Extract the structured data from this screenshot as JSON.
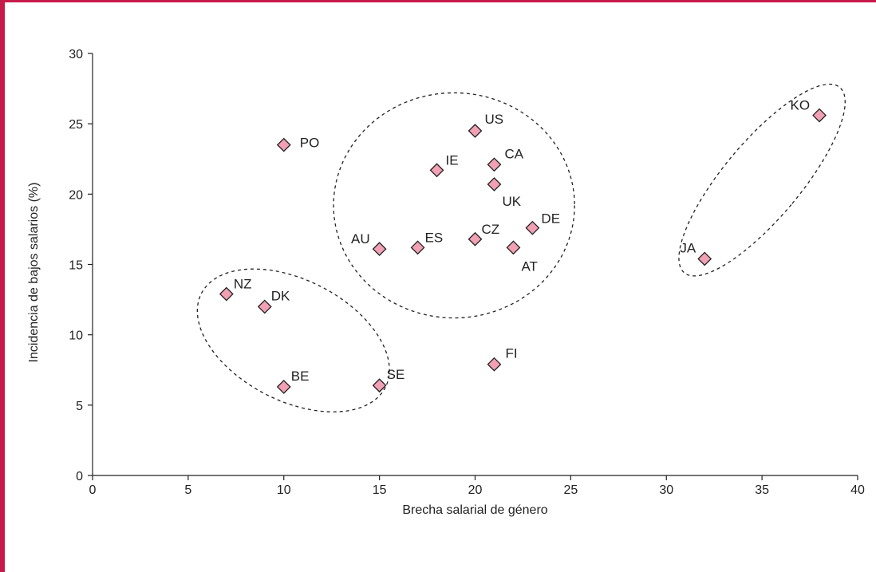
{
  "chart_data": {
    "type": "scatter",
    "xlabel": "Brecha salarial de género",
    "ylabel": "Incidencia de bajos salarios (%)",
    "xlim": [
      0,
      40
    ],
    "ylim": [
      0,
      30
    ],
    "xticks": [
      "0",
      "5",
      "10",
      "15",
      "20",
      "25",
      "30",
      "35",
      "40"
    ],
    "yticks": [
      "0",
      "5",
      "10",
      "15",
      "20",
      "25",
      "30"
    ],
    "grid": false,
    "marker": "diamond",
    "colors": {
      "marker_fill": "#f2a0b4",
      "marker_stroke": "#222222",
      "frame": "#c8194b"
    },
    "points": [
      {
        "label": "PO",
        "x": 10,
        "y": 23.5
      },
      {
        "label": "US",
        "x": 20,
        "y": 24.5
      },
      {
        "label": "IE",
        "x": 18,
        "y": 21.7
      },
      {
        "label": "CA",
        "x": 21,
        "y": 22.1
      },
      {
        "label": "UK",
        "x": 21,
        "y": 20.7
      },
      {
        "label": "DE",
        "x": 23,
        "y": 17.6
      },
      {
        "label": "CZ",
        "x": 20,
        "y": 16.8
      },
      {
        "label": "AT",
        "x": 22,
        "y": 16.2
      },
      {
        "label": "AU",
        "x": 15,
        "y": 16.1
      },
      {
        "label": "ES",
        "x": 17,
        "y": 16.2
      },
      {
        "label": "NZ",
        "x": 7,
        "y": 12.9
      },
      {
        "label": "DK",
        "x": 9,
        "y": 12.0
      },
      {
        "label": "BE",
        "x": 10,
        "y": 6.3
      },
      {
        "label": "SE",
        "x": 15,
        "y": 6.4
      },
      {
        "label": "FI",
        "x": 21,
        "y": 7.9
      },
      {
        "label": "KO",
        "x": 38,
        "y": 25.6
      },
      {
        "label": "JA",
        "x": 32,
        "y": 15.4
      }
    ],
    "clusters": [
      {
        "members": [
          "US",
          "IE",
          "CA",
          "UK",
          "DE",
          "CZ",
          "AT",
          "AU",
          "ES"
        ],
        "cx": 18.9,
        "cy": 19.2,
        "rx": 6.3,
        "ry": 8.0,
        "rotate": 0
      },
      {
        "members": [
          "NZ",
          "DK",
          "BE",
          "SE"
        ],
        "cx": 10.5,
        "cy": 9.6,
        "rx": 5.4,
        "ry": 4.3,
        "rotate": 27
      },
      {
        "members": [
          "KO",
          "JA"
        ],
        "cx": 35.0,
        "cy": 21.0,
        "rx": 2.0,
        "ry": 8.6,
        "rotate": 40
      }
    ]
  }
}
